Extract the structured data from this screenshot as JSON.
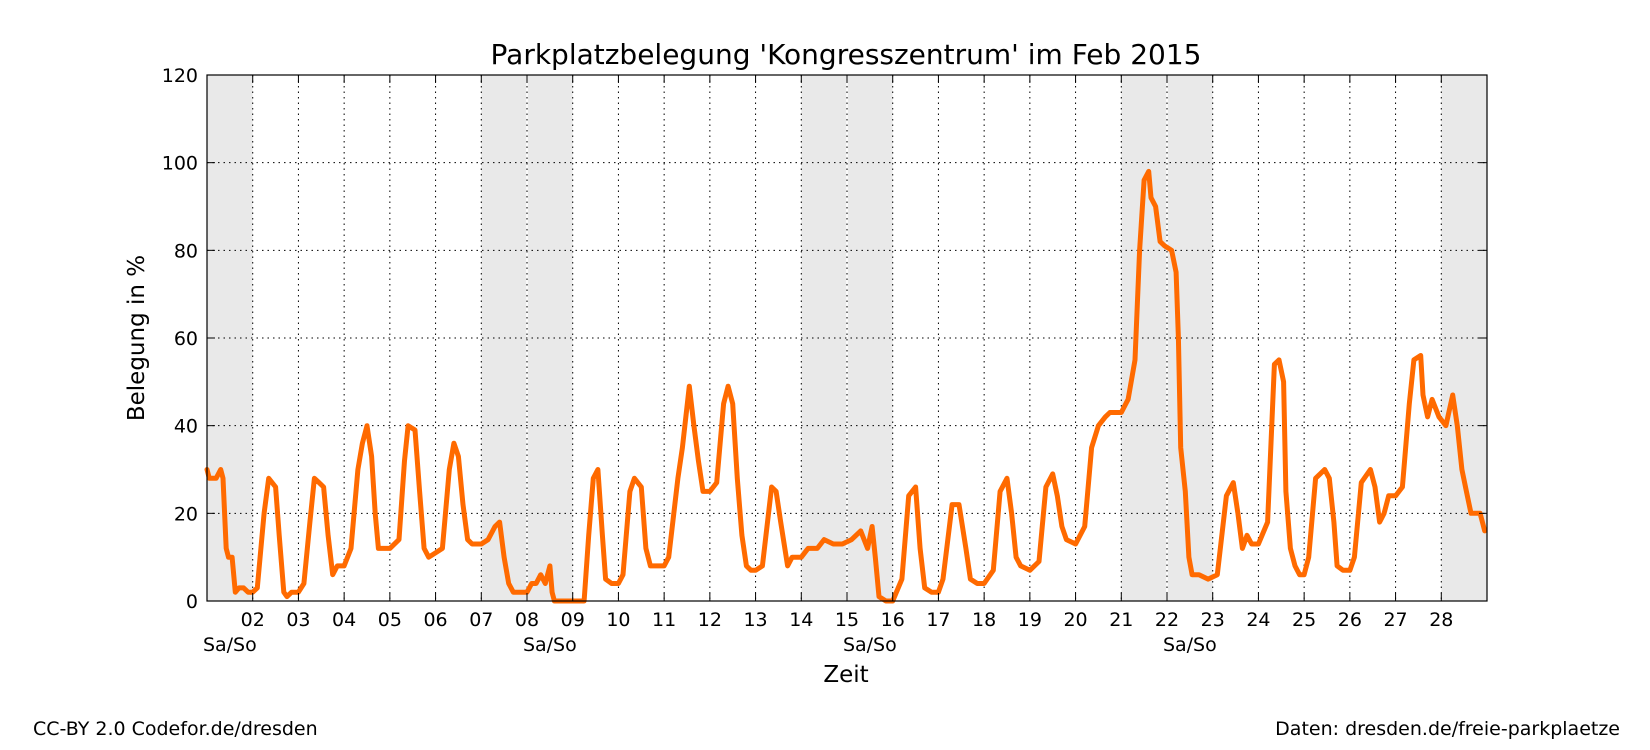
{
  "chart_data": {
    "type": "line",
    "title": "Parkplatzbelegung 'Kongresszentrum' im Feb 2015",
    "xlabel": "Zeit",
    "ylabel": "Belegung in %",
    "ylim": [
      0,
      120
    ],
    "yticks": [
      0,
      20,
      40,
      60,
      80,
      100,
      120
    ],
    "xlim": [
      1,
      29
    ],
    "grid": true,
    "line_color": "#ff6a00",
    "weekend_shade_color": "#e9e9e9",
    "weekend_label": "Sa/So",
    "weekend_label_days": [
      1.5,
      8.5,
      15.5,
      22.5
    ],
    "weekends": [
      [
        1,
        2
      ],
      [
        7,
        9
      ],
      [
        14,
        16
      ],
      [
        21,
        23
      ],
      [
        28,
        29
      ]
    ],
    "x_tick_labels": [
      {
        "day": 2,
        "label": "02"
      },
      {
        "day": 3,
        "label": "03"
      },
      {
        "day": 4,
        "label": "04"
      },
      {
        "day": 5,
        "label": "05"
      },
      {
        "day": 6,
        "label": "06"
      },
      {
        "day": 7,
        "label": "07"
      },
      {
        "day": 8,
        "label": "08"
      },
      {
        "day": 9,
        "label": "09"
      },
      {
        "day": 10,
        "label": "10"
      },
      {
        "day": 11,
        "label": "11"
      },
      {
        "day": 12,
        "label": "12"
      },
      {
        "day": 13,
        "label": "13"
      },
      {
        "day": 14,
        "label": "14"
      },
      {
        "day": 15,
        "label": "15"
      },
      {
        "day": 16,
        "label": "16"
      },
      {
        "day": 17,
        "label": "17"
      },
      {
        "day": 18,
        "label": "18"
      },
      {
        "day": 19,
        "label": "19"
      },
      {
        "day": 20,
        "label": "20"
      },
      {
        "day": 21,
        "label": "21"
      },
      {
        "day": 22,
        "label": "22"
      },
      {
        "day": 23,
        "label": "23"
      },
      {
        "day": 24,
        "label": "24"
      },
      {
        "day": 25,
        "label": "25"
      },
      {
        "day": 26,
        "label": "26"
      },
      {
        "day": 27,
        "label": "27"
      },
      {
        "day": 28,
        "label": "28"
      }
    ],
    "series": [
      {
        "points": [
          [
            1.0,
            30
          ],
          [
            1.05,
            28
          ],
          [
            1.2,
            28
          ],
          [
            1.3,
            30
          ],
          [
            1.35,
            28
          ],
          [
            1.42,
            12
          ],
          [
            1.47,
            10
          ],
          [
            1.55,
            10
          ],
          [
            1.62,
            2
          ],
          [
            1.7,
            3
          ],
          [
            1.8,
            3
          ],
          [
            1.9,
            2
          ],
          [
            2.0,
            2
          ],
          [
            2.1,
            3
          ],
          [
            2.25,
            20
          ],
          [
            2.35,
            28
          ],
          [
            2.5,
            26
          ],
          [
            2.58,
            15
          ],
          [
            2.68,
            2
          ],
          [
            2.75,
            1
          ],
          [
            2.85,
            2
          ],
          [
            3.0,
            2
          ],
          [
            3.12,
            4
          ],
          [
            3.25,
            18
          ],
          [
            3.35,
            28
          ],
          [
            3.45,
            27
          ],
          [
            3.55,
            26
          ],
          [
            3.65,
            15
          ],
          [
            3.75,
            6
          ],
          [
            3.85,
            8
          ],
          [
            4.0,
            8
          ],
          [
            4.15,
            12
          ],
          [
            4.3,
            30
          ],
          [
            4.4,
            36
          ],
          [
            4.5,
            40
          ],
          [
            4.6,
            33
          ],
          [
            4.68,
            20
          ],
          [
            4.75,
            12
          ],
          [
            4.85,
            12
          ],
          [
            5.0,
            12
          ],
          [
            5.2,
            14
          ],
          [
            5.32,
            32
          ],
          [
            5.4,
            40
          ],
          [
            5.55,
            39
          ],
          [
            5.65,
            25
          ],
          [
            5.75,
            12
          ],
          [
            5.85,
            10
          ],
          [
            6.0,
            11
          ],
          [
            6.15,
            12
          ],
          [
            6.3,
            30
          ],
          [
            6.4,
            36
          ],
          [
            6.5,
            33
          ],
          [
            6.6,
            22
          ],
          [
            6.7,
            14
          ],
          [
            6.8,
            13
          ],
          [
            7.0,
            13
          ],
          [
            7.15,
            14
          ],
          [
            7.3,
            17
          ],
          [
            7.4,
            18
          ],
          [
            7.5,
            10
          ],
          [
            7.6,
            4
          ],
          [
            7.7,
            2
          ],
          [
            7.8,
            2
          ],
          [
            7.9,
            2
          ],
          [
            8.0,
            2
          ],
          [
            8.1,
            4
          ],
          [
            8.2,
            4
          ],
          [
            8.3,
            6
          ],
          [
            8.4,
            4
          ],
          [
            8.5,
            8
          ],
          [
            8.55,
            2
          ],
          [
            8.6,
            0
          ],
          [
            9.0,
            0
          ],
          [
            9.25,
            0
          ],
          [
            9.35,
            15
          ],
          [
            9.45,
            28
          ],
          [
            9.55,
            30
          ],
          [
            9.65,
            15
          ],
          [
            9.72,
            5
          ],
          [
            9.85,
            4
          ],
          [
            10.0,
            4
          ],
          [
            10.1,
            6
          ],
          [
            10.25,
            25
          ],
          [
            10.35,
            28
          ],
          [
            10.5,
            26
          ],
          [
            10.6,
            12
          ],
          [
            10.7,
            8
          ],
          [
            10.85,
            8
          ],
          [
            11.0,
            8
          ],
          [
            11.1,
            10
          ],
          [
            11.3,
            28
          ],
          [
            11.4,
            35
          ],
          [
            11.55,
            49
          ],
          [
            11.65,
            40
          ],
          [
            11.75,
            32
          ],
          [
            11.85,
            25
          ],
          [
            12.0,
            25
          ],
          [
            12.15,
            27
          ],
          [
            12.3,
            45
          ],
          [
            12.4,
            49
          ],
          [
            12.5,
            45
          ],
          [
            12.6,
            28
          ],
          [
            12.7,
            15
          ],
          [
            12.8,
            8
          ],
          [
            12.9,
            7
          ],
          [
            13.0,
            7
          ],
          [
            13.15,
            8
          ],
          [
            13.35,
            26
          ],
          [
            13.45,
            25
          ],
          [
            13.55,
            18
          ],
          [
            13.7,
            8
          ],
          [
            13.8,
            10
          ],
          [
            14.0,
            10
          ],
          [
            14.15,
            12
          ],
          [
            14.35,
            12
          ],
          [
            14.5,
            14
          ],
          [
            14.7,
            13
          ],
          [
            14.9,
            13
          ],
          [
            15.1,
            14
          ],
          [
            15.3,
            16
          ],
          [
            15.45,
            12
          ],
          [
            15.55,
            17
          ],
          [
            15.62,
            10
          ],
          [
            15.7,
            1
          ],
          [
            15.85,
            0
          ],
          [
            16.0,
            0
          ],
          [
            16.2,
            5
          ],
          [
            16.35,
            24
          ],
          [
            16.5,
            26
          ],
          [
            16.6,
            12
          ],
          [
            16.7,
            3
          ],
          [
            16.85,
            2
          ],
          [
            17.0,
            2
          ],
          [
            17.1,
            5
          ],
          [
            17.3,
            22
          ],
          [
            17.45,
            22
          ],
          [
            17.6,
            12
          ],
          [
            17.7,
            5
          ],
          [
            17.85,
            4
          ],
          [
            18.0,
            4
          ],
          [
            18.2,
            7
          ],
          [
            18.35,
            25
          ],
          [
            18.5,
            28
          ],
          [
            18.6,
            20
          ],
          [
            18.7,
            10
          ],
          [
            18.8,
            8
          ],
          [
            19.0,
            7
          ],
          [
            19.2,
            9
          ],
          [
            19.35,
            26
          ],
          [
            19.5,
            29
          ],
          [
            19.6,
            24
          ],
          [
            19.7,
            17
          ],
          [
            19.8,
            14
          ],
          [
            20.0,
            13
          ],
          [
            20.2,
            17
          ],
          [
            20.35,
            35
          ],
          [
            20.5,
            40
          ],
          [
            20.65,
            42
          ],
          [
            20.75,
            43
          ],
          [
            20.85,
            43
          ],
          [
            21.0,
            43
          ],
          [
            21.15,
            46
          ],
          [
            21.3,
            55
          ],
          [
            21.4,
            80
          ],
          [
            21.5,
            96
          ],
          [
            21.6,
            98
          ],
          [
            21.65,
            92
          ],
          [
            21.75,
            90
          ],
          [
            21.85,
            82
          ],
          [
            21.95,
            81
          ],
          [
            22.1,
            80
          ],
          [
            22.2,
            75
          ],
          [
            22.25,
            60
          ],
          [
            22.3,
            35
          ],
          [
            22.4,
            25
          ],
          [
            22.48,
            10
          ],
          [
            22.55,
            6
          ],
          [
            22.7,
            6
          ],
          [
            22.9,
            5
          ],
          [
            23.1,
            6
          ],
          [
            23.3,
            24
          ],
          [
            23.45,
            27
          ],
          [
            23.55,
            20
          ],
          [
            23.65,
            12
          ],
          [
            23.75,
            15
          ],
          [
            23.85,
            13
          ],
          [
            24.0,
            13
          ],
          [
            24.2,
            18
          ],
          [
            24.35,
            54
          ],
          [
            24.45,
            55
          ],
          [
            24.55,
            50
          ],
          [
            24.6,
            25
          ],
          [
            24.7,
            12
          ],
          [
            24.8,
            8
          ],
          [
            24.9,
            6
          ],
          [
            25.0,
            6
          ],
          [
            25.1,
            10
          ],
          [
            25.25,
            28
          ],
          [
            25.45,
            30
          ],
          [
            25.55,
            28
          ],
          [
            25.65,
            18
          ],
          [
            25.72,
            8
          ],
          [
            25.85,
            7
          ],
          [
            26.0,
            7
          ],
          [
            26.1,
            10
          ],
          [
            26.25,
            27
          ],
          [
            26.45,
            30
          ],
          [
            26.55,
            26
          ],
          [
            26.65,
            18
          ],
          [
            26.75,
            20
          ],
          [
            26.85,
            24
          ],
          [
            27.0,
            24
          ],
          [
            27.15,
            26
          ],
          [
            27.3,
            45
          ],
          [
            27.4,
            55
          ],
          [
            27.55,
            56
          ],
          [
            27.6,
            47
          ],
          [
            27.7,
            42
          ],
          [
            27.8,
            46
          ],
          [
            27.95,
            42
          ],
          [
            28.1,
            40
          ],
          [
            28.25,
            47
          ],
          [
            28.35,
            40
          ],
          [
            28.45,
            30
          ],
          [
            28.55,
            25
          ],
          [
            28.65,
            20
          ],
          [
            28.75,
            20
          ],
          [
            28.85,
            20
          ],
          [
            28.95,
            16
          ]
        ]
      }
    ]
  },
  "footer": {
    "license": "CC-BY 2.0 Codefor.de/dresden",
    "source": "Daten: dresden.de/freie-parkplaetze"
  }
}
